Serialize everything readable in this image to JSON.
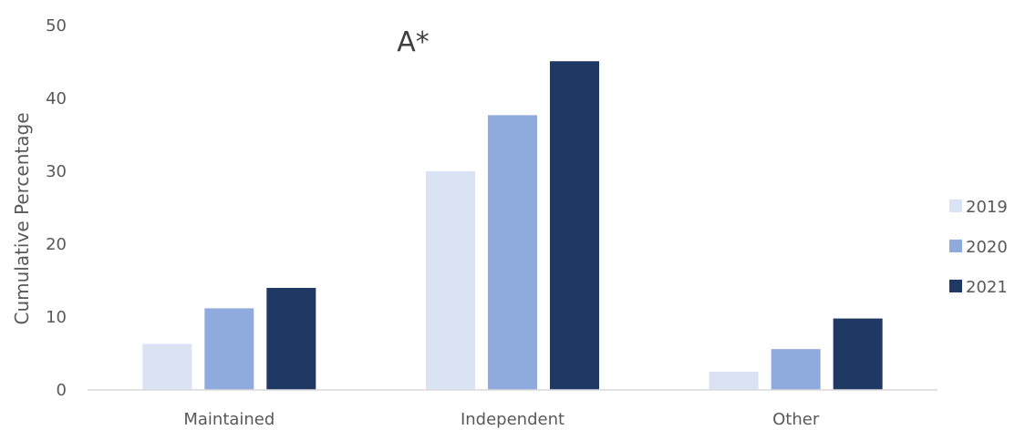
{
  "chart_data": {
    "type": "bar",
    "title": "A*",
    "xlabel": "",
    "ylabel": "Cumulative Percentage",
    "ylim": [
      0,
      50
    ],
    "yticks": [
      0,
      10,
      20,
      30,
      40,
      50
    ],
    "grid": false,
    "legend_position": "right",
    "categories": [
      "Maintained",
      "Independent",
      "Other"
    ],
    "series": [
      {
        "name": "2019",
        "color": "#dae3f3",
        "values": [
          6.3,
          30.0,
          2.5
        ]
      },
      {
        "name": "2020",
        "color": "#8faadc",
        "values": [
          11.2,
          37.7,
          5.6
        ]
      },
      {
        "name": "2021",
        "color": "#203864",
        "values": [
          14.0,
          45.1,
          9.8
        ]
      }
    ]
  }
}
